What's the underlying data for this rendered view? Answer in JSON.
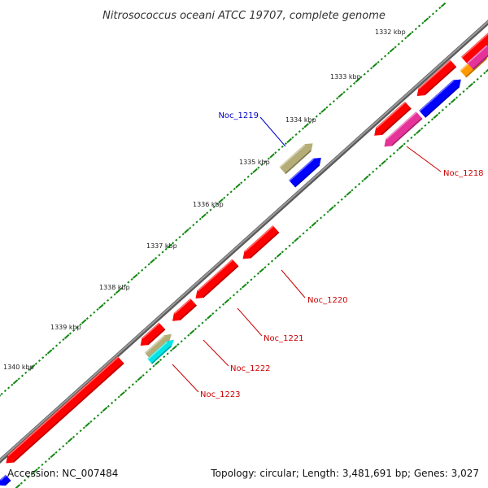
{
  "title": "Nitrosococcus oceani ATCC 19707, complete genome",
  "footer": {
    "accession": "Accession: NC_007484",
    "summary": "Topology: circular; Length: 3,481,691 bp; Genes: 3,027"
  },
  "scale": {
    "ticks": [
      "1332 kbp",
      "1333 kbp",
      "1334 kbp",
      "1335 kbp",
      "1336 kbp",
      "1337 kbp",
      "1338 kbp",
      "1339 kbp",
      "1340 kbp"
    ]
  },
  "gene_labels": [
    {
      "name": "Noc_1219",
      "color": "#0000cc"
    },
    {
      "name": "Noc_1218",
      "color": "#cc0000"
    },
    {
      "name": "Noc_1220",
      "color": "#cc0000"
    },
    {
      "name": "Noc_1221",
      "color": "#cc0000"
    },
    {
      "name": "Noc_1222",
      "color": "#cc0000"
    },
    {
      "name": "Noc_1223",
      "color": "#cc0000"
    }
  ],
  "colors": {
    "backbone": "#7a7a7a",
    "forward_gene": "#ff0000",
    "reverse_gene": "#0000ff",
    "magenta_gene": "#e6339a",
    "orange_gene": "#ff9900",
    "khaki_gene": "#b5ad77",
    "cyan_gene": "#00e5e5",
    "dots": "#118811"
  }
}
